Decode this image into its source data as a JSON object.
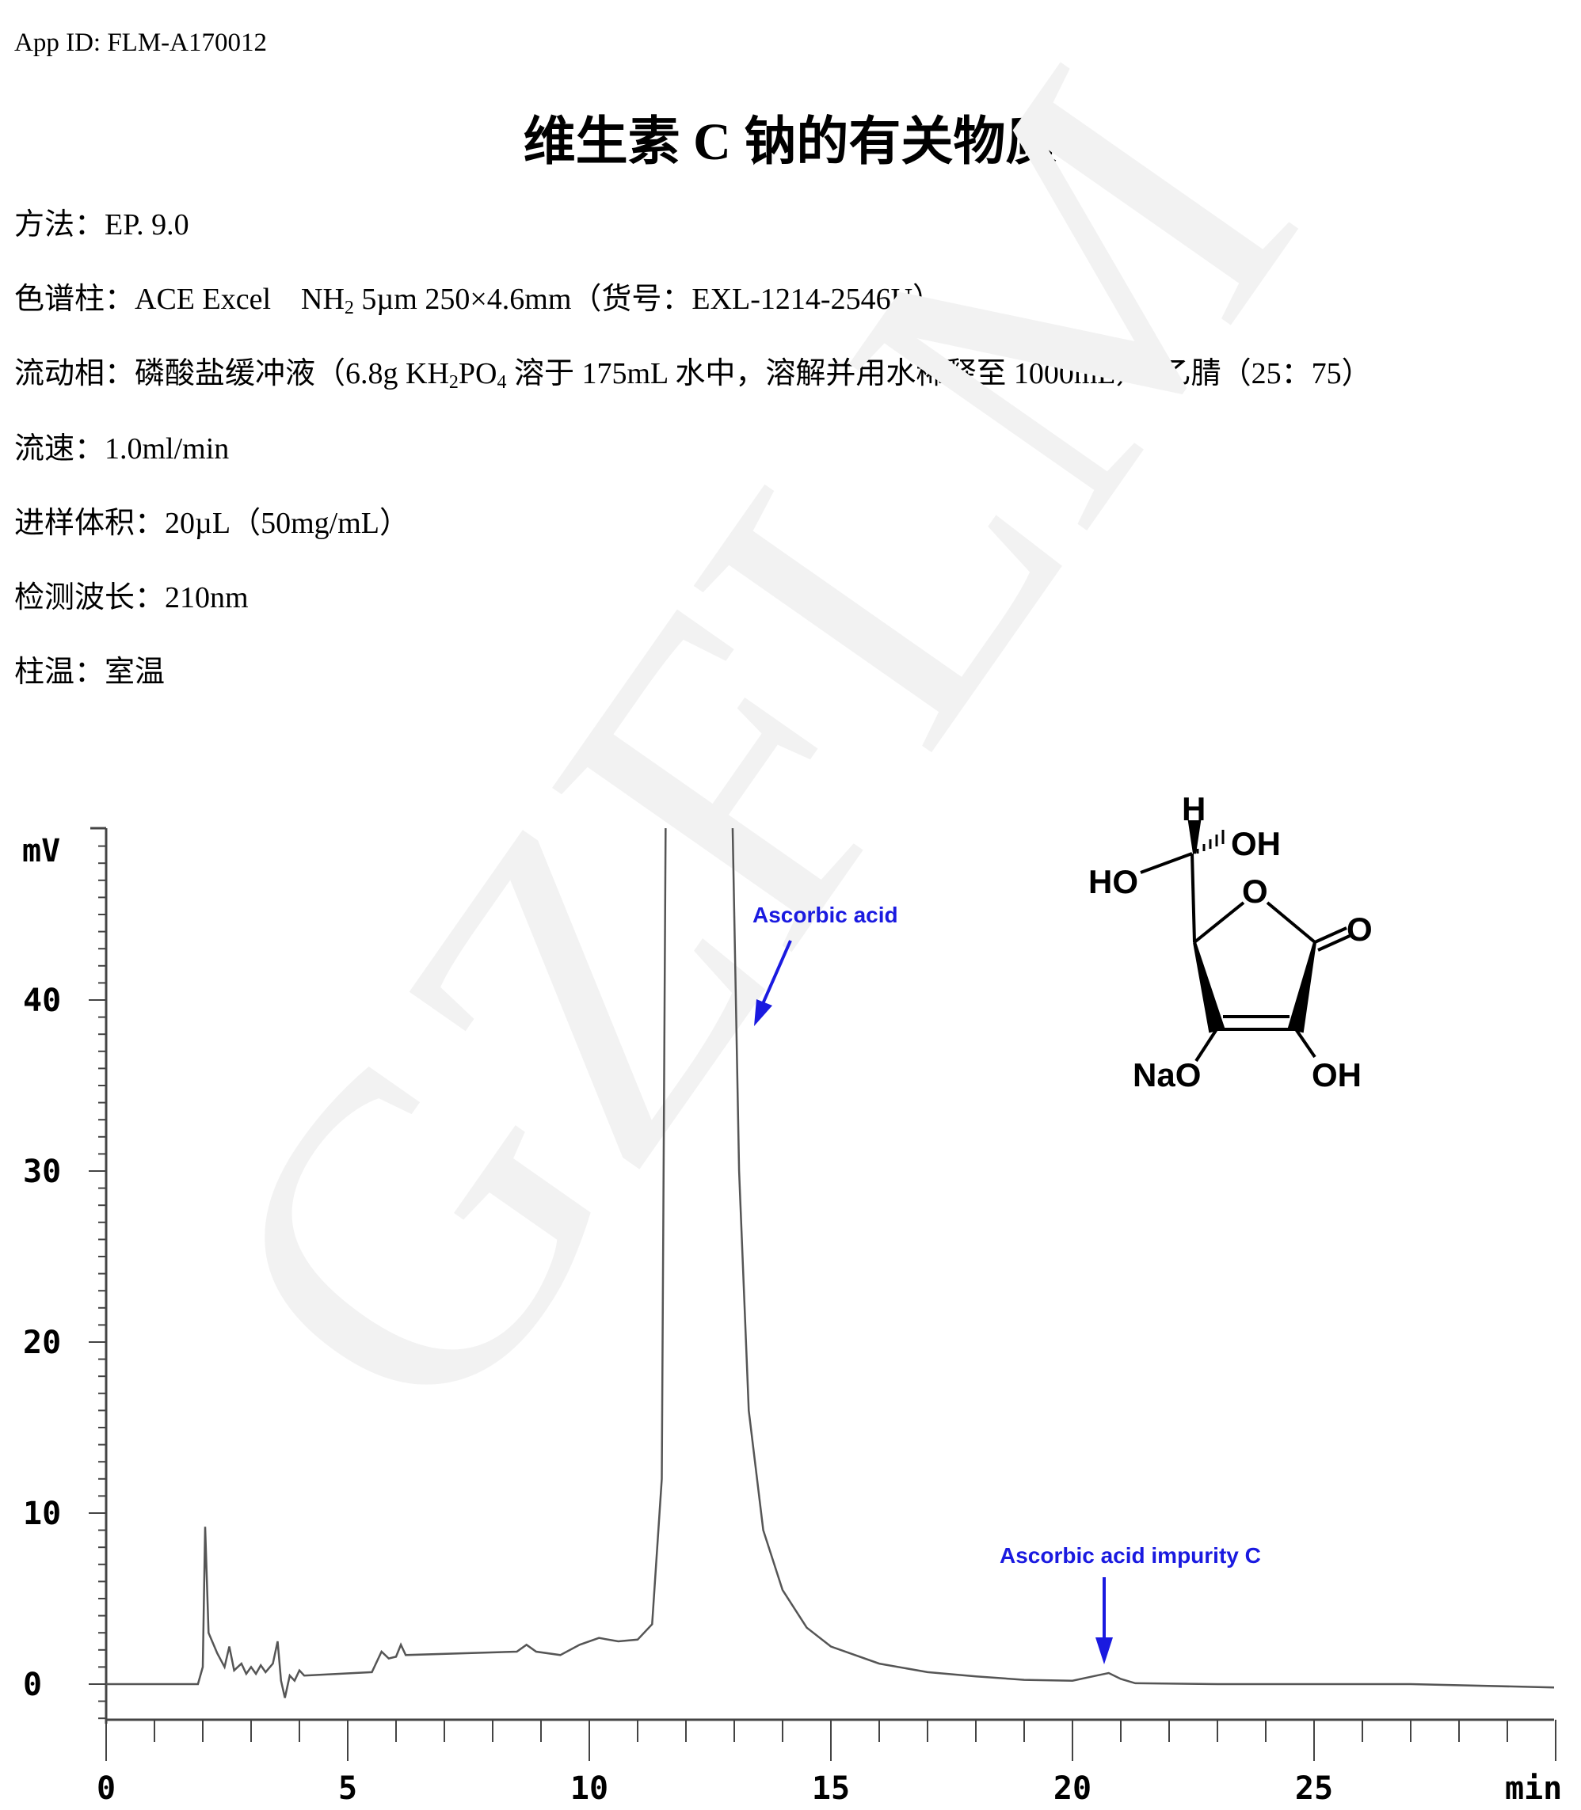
{
  "header": {
    "app_id": "App ID: FLM-A170012"
  },
  "title": "维生素 C 钠的有关物质",
  "conditions": {
    "method": "方法：EP. 9.0",
    "column_a": "色谱柱：ACE Excel　NH",
    "column_sub": "2",
    "column_b": " 5µm 250×4.6mm（货号：EXL-1214-2546U）",
    "mobile_a": "流动相：磷酸盐缓冲液（6.8g KH",
    "mobile_sub1": "2",
    "mobile_b": "PO",
    "mobile_sub2": "4",
    "mobile_c": " 溶于 175mL 水中，溶解并用水稀释至 1000mL）–乙腈（25：75）",
    "flow": "流速：1.0ml/min",
    "injection": "进样体积：20µL（50mg/mL）",
    "wavelength": "检测波长：210nm",
    "temperature": "柱温：室温"
  },
  "watermark": "GZFLM",
  "structure_labels": {
    "h": "H",
    "oh_top": "OH",
    "ho": "HO",
    "o_ring": "O",
    "o_carbonyl": "O",
    "nao": "NaO",
    "oh_bottom": "OH"
  },
  "chart_data": {
    "type": "line",
    "xlabel": "min",
    "ylabel": "mV",
    "xlim": [
      0,
      30
    ],
    "ylim": [
      -2,
      50
    ],
    "xticks": [
      0,
      5,
      10,
      15,
      20,
      25
    ],
    "yticks": [
      0,
      10,
      20,
      30,
      40
    ],
    "grid": false,
    "line_color": "#555555",
    "annotation_color": "#1a1ae0",
    "annotations": [
      {
        "text": "Ascorbic acid",
        "x": 13.2,
        "y": 38
      },
      {
        "text": "Ascorbic acid impurity C",
        "x": 20.7,
        "y": 1
      }
    ],
    "series": [
      {
        "x": [
          0,
          1.9,
          2.0,
          2.05,
          2.12,
          2.3,
          2.45,
          2.55,
          2.65,
          2.8,
          2.9,
          3.0,
          3.1,
          3.2,
          3.3,
          3.45,
          3.55,
          3.62,
          3.7,
          3.8,
          3.9,
          4.0,
          4.1,
          5.5,
          5.7,
          5.85,
          6.0,
          6.1,
          6.2,
          8.5,
          8.7,
          8.9,
          9.4,
          9.8,
          10.2,
          10.6,
          11.0,
          11.3,
          11.5,
          11.6,
          12.9,
          13.1,
          13.3,
          13.6,
          14.0,
          14.5,
          15,
          16,
          17,
          18,
          19,
          20,
          20.5,
          20.75,
          21.0,
          21.3,
          23,
          27,
          30
        ],
        "y": [
          0,
          0,
          1,
          9.2,
          3,
          1.8,
          1,
          2.2,
          0.8,
          1.2,
          0.6,
          1.0,
          0.6,
          1.1,
          0.7,
          1.2,
          2.5,
          0.2,
          -0.8,
          0.5,
          0.2,
          0.8,
          0.5,
          0.7,
          1.9,
          1.5,
          1.6,
          2.3,
          1.7,
          1.9,
          2.3,
          1.9,
          1.7,
          2.3,
          2.7,
          2.5,
          2.6,
          3.5,
          12,
          60,
          60,
          30,
          16,
          9,
          5.5,
          3.3,
          2.2,
          1.2,
          0.7,
          0.45,
          0.25,
          0.2,
          0.5,
          0.65,
          0.3,
          0.05,
          0,
          0,
          -0.2
        ]
      }
    ]
  }
}
